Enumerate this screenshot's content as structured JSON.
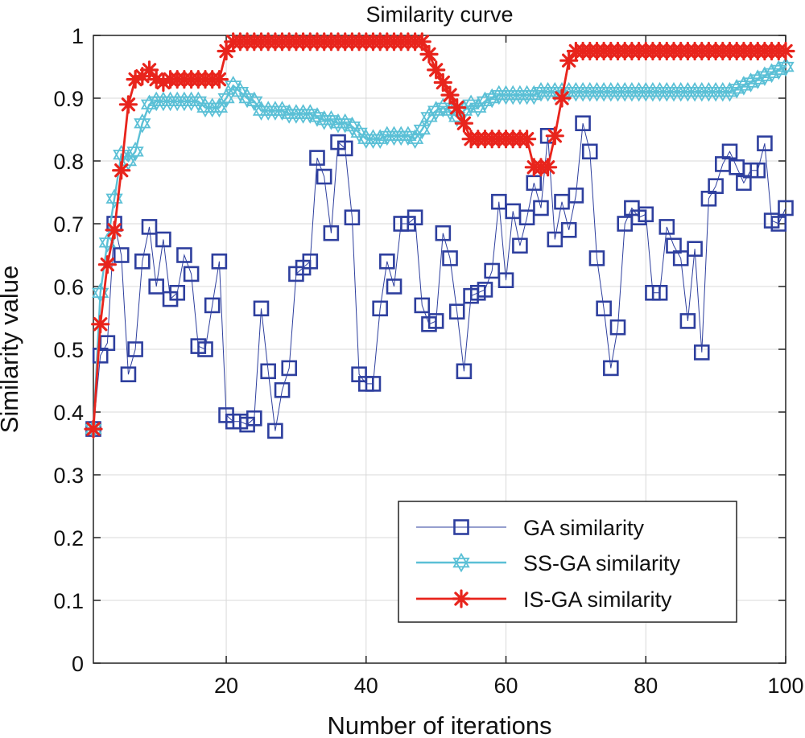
{
  "chart_data": {
    "type": "line",
    "title": "Similarity curve",
    "xlabel": "Number of iterations",
    "ylabel": "Similarity value",
    "xlim": [
      1,
      100
    ],
    "ylim": [
      0,
      1
    ],
    "xticks": [
      20,
      40,
      60,
      80,
      100
    ],
    "yticks": [
      0,
      0.1,
      0.2,
      0.3,
      0.4,
      0.5,
      0.6,
      0.7,
      0.8,
      0.9,
      1
    ],
    "xtick_labels": [
      "20",
      "40",
      "60",
      "80",
      "100"
    ],
    "ytick_labels": [
      "0",
      "0.1",
      "0.2",
      "0.3",
      "0.4",
      "0.5",
      "0.6",
      "0.7",
      "0.8",
      "0.9",
      "1"
    ],
    "grid": true,
    "legend_position": "bottom-right",
    "x": [
      1,
      2,
      3,
      4,
      5,
      6,
      7,
      8,
      9,
      10,
      11,
      12,
      13,
      14,
      15,
      16,
      17,
      18,
      19,
      20,
      21,
      22,
      23,
      24,
      25,
      26,
      27,
      28,
      29,
      30,
      31,
      32,
      33,
      34,
      35,
      36,
      37,
      38,
      39,
      40,
      41,
      42,
      43,
      44,
      45,
      46,
      47,
      48,
      49,
      50,
      51,
      52,
      53,
      54,
      55,
      56,
      57,
      58,
      59,
      60,
      61,
      62,
      63,
      64,
      65,
      66,
      67,
      68,
      69,
      70,
      71,
      72,
      73,
      74,
      75,
      76,
      77,
      78,
      79,
      80,
      81,
      82,
      83,
      84,
      85,
      86,
      87,
      88,
      89,
      90,
      91,
      92,
      93,
      94,
      95,
      96,
      97,
      98,
      99,
      100
    ],
    "series": [
      {
        "name": "GA similarity",
        "color": "#2e3f9e",
        "marker": "square",
        "values": [
          0.373,
          0.49,
          0.51,
          0.7,
          0.65,
          0.46,
          0.5,
          0.64,
          0.695,
          0.6,
          0.675,
          0.58,
          0.59,
          0.65,
          0.62,
          0.505,
          0.5,
          0.57,
          0.64,
          0.395,
          0.385,
          0.385,
          0.38,
          0.39,
          0.565,
          0.465,
          0.37,
          0.435,
          0.47,
          0.62,
          0.63,
          0.64,
          0.805,
          0.775,
          0.685,
          0.83,
          0.82,
          0.71,
          0.46,
          0.445,
          0.445,
          0.565,
          0.64,
          0.6,
          0.7,
          0.7,
          0.71,
          0.57,
          0.54,
          0.545,
          0.685,
          0.645,
          0.56,
          0.465,
          0.585,
          0.59,
          0.595,
          0.625,
          0.735,
          0.61,
          0.72,
          0.665,
          0.71,
          0.765,
          0.725,
          0.84,
          0.675,
          0.735,
          0.69,
          0.745,
          0.86,
          0.815,
          0.645,
          0.565,
          0.47,
          0.535,
          0.7,
          0.725,
          0.71,
          0.715,
          0.59,
          0.59,
          0.695,
          0.665,
          0.645,
          0.545,
          0.66,
          0.495,
          0.74,
          0.76,
          0.795,
          0.815,
          0.79,
          0.765,
          0.785,
          0.785,
          0.828,
          0.705,
          0.7,
          0.725
        ]
      },
      {
        "name": "SS-GA similarity",
        "color": "#5bc0d6",
        "marker": "hexagram",
        "values": [
          0.373,
          0.59,
          0.67,
          0.74,
          0.81,
          0.8,
          0.815,
          0.86,
          0.89,
          0.895,
          0.895,
          0.895,
          0.895,
          0.895,
          0.895,
          0.895,
          0.885,
          0.885,
          0.885,
          0.9,
          0.92,
          0.91,
          0.9,
          0.895,
          0.88,
          0.88,
          0.88,
          0.88,
          0.875,
          0.875,
          0.875,
          0.875,
          0.87,
          0.865,
          0.865,
          0.86,
          0.86,
          0.855,
          0.845,
          0.835,
          0.835,
          0.835,
          0.84,
          0.84,
          0.84,
          0.84,
          0.835,
          0.85,
          0.87,
          0.88,
          0.885,
          0.88,
          0.87,
          0.88,
          0.89,
          0.885,
          0.895,
          0.9,
          0.905,
          0.905,
          0.905,
          0.905,
          0.905,
          0.905,
          0.91,
          0.91,
          0.91,
          0.91,
          0.91,
          0.91,
          0.91,
          0.91,
          0.91,
          0.91,
          0.91,
          0.91,
          0.91,
          0.91,
          0.91,
          0.91,
          0.91,
          0.91,
          0.91,
          0.91,
          0.91,
          0.91,
          0.91,
          0.91,
          0.91,
          0.91,
          0.91,
          0.91,
          0.915,
          0.92,
          0.925,
          0.93,
          0.935,
          0.94,
          0.945,
          0.95
        ]
      },
      {
        "name": "IS-GA similarity",
        "color": "#e8241c",
        "marker": "asterisk",
        "values": [
          0.373,
          0.54,
          0.635,
          0.69,
          0.785,
          0.89,
          0.93,
          0.935,
          0.945,
          0.93,
          0.925,
          0.93,
          0.93,
          0.93,
          0.93,
          0.93,
          0.93,
          0.93,
          0.93,
          0.975,
          0.99,
          0.99,
          0.99,
          0.99,
          0.99,
          0.99,
          0.99,
          0.99,
          0.99,
          0.99,
          0.99,
          0.99,
          0.99,
          0.99,
          0.99,
          0.99,
          0.99,
          0.99,
          0.99,
          0.99,
          0.99,
          0.99,
          0.99,
          0.99,
          0.99,
          0.99,
          0.99,
          0.99,
          0.97,
          0.945,
          0.925,
          0.905,
          0.885,
          0.86,
          0.835,
          0.835,
          0.835,
          0.835,
          0.835,
          0.835,
          0.835,
          0.835,
          0.835,
          0.79,
          0.79,
          0.79,
          0.84,
          0.9,
          0.96,
          0.975,
          0.975,
          0.975,
          0.975,
          0.975,
          0.975,
          0.975,
          0.975,
          0.975,
          0.975,
          0.975,
          0.975,
          0.975,
          0.975,
          0.975,
          0.975,
          0.975,
          0.975,
          0.975,
          0.975,
          0.975,
          0.975,
          0.975,
          0.975,
          0.975,
          0.975,
          0.975,
          0.975,
          0.975,
          0.975,
          0.975
        ]
      }
    ]
  }
}
